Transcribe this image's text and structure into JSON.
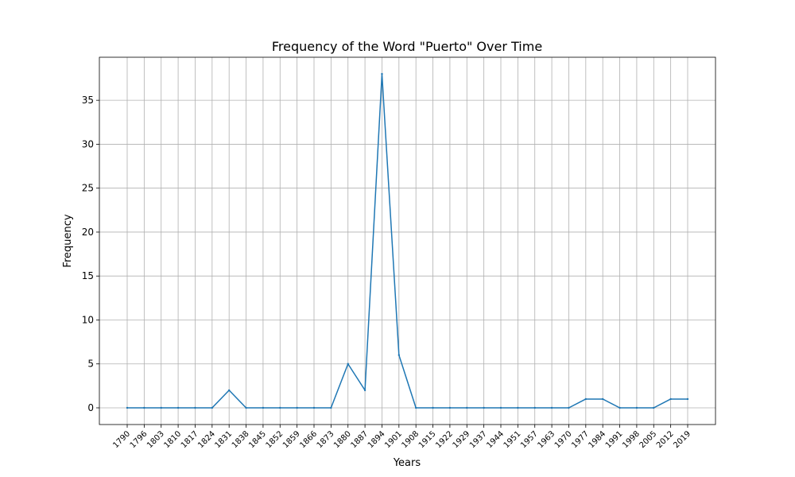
{
  "chart_data": {
    "type": "line",
    "title": "Frequency of the Word \"Puerto\" Over Time",
    "xlabel": "Years",
    "ylabel": "Frequency",
    "grid": true,
    "ylim": [
      -1.9,
      39.9
    ],
    "yticks": [
      0,
      5,
      10,
      15,
      20,
      25,
      30,
      35
    ],
    "line_color": "#1f77b4",
    "categories": [
      "1790",
      "1796",
      "1803",
      "1810",
      "1817",
      "1824",
      "1831",
      "1838",
      "1845",
      "1852",
      "1859",
      "1866",
      "1873",
      "1880",
      "1887",
      "1894",
      "1901",
      "1908",
      "1915",
      "1922",
      "1929",
      "1937",
      "1944",
      "1951",
      "1957",
      "1963",
      "1970",
      "1977",
      "1984",
      "1991",
      "1998",
      "2005",
      "2012",
      "2019"
    ],
    "series": [
      {
        "values": [
          0,
          0,
          0,
          0,
          0,
          0,
          2,
          0,
          0,
          0,
          0,
          0,
          0,
          5,
          2,
          38,
          6,
          0,
          0,
          0,
          0,
          0,
          0,
          0,
          0,
          0,
          0,
          1,
          1,
          0,
          0,
          0,
          1,
          1
        ]
      }
    ]
  }
}
